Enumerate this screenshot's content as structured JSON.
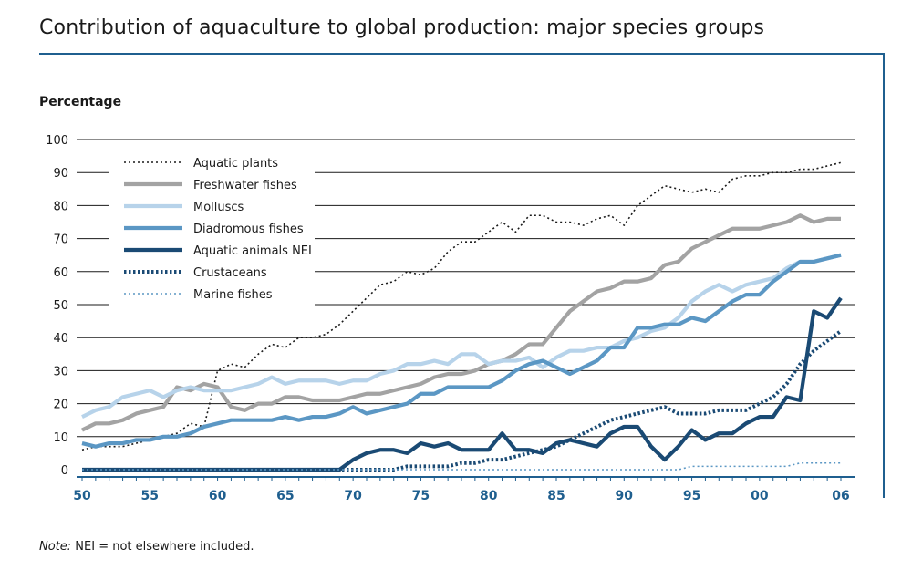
{
  "chart_data": {
    "type": "line",
    "title": "Contribution of aquaculture to global production: major species groups",
    "ylabel": "Percentage",
    "xlabel": "",
    "ylim": [
      0,
      100
    ],
    "y_ticks": [
      0,
      10,
      20,
      30,
      40,
      50,
      60,
      70,
      80,
      90,
      100
    ],
    "xlim": [
      1950,
      2006
    ],
    "x_ticks": [
      {
        "value": 1950,
        "label": "50"
      },
      {
        "value": 1955,
        "label": "55"
      },
      {
        "value": 1960,
        "label": "60"
      },
      {
        "value": 1965,
        "label": "65"
      },
      {
        "value": 1970,
        "label": "70"
      },
      {
        "value": 1975,
        "label": "75"
      },
      {
        "value": 1980,
        "label": "80"
      },
      {
        "value": 1985,
        "label": "85"
      },
      {
        "value": 1990,
        "label": "90"
      },
      {
        "value": 1995,
        "label": "95"
      },
      {
        "value": 2000,
        "label": "00"
      },
      {
        "value": 2006,
        "label": "06"
      }
    ],
    "grid": "horizontal",
    "legend_position": "top-left",
    "x": [
      1950,
      1951,
      1952,
      1953,
      1954,
      1955,
      1956,
      1957,
      1958,
      1959,
      1960,
      1961,
      1962,
      1963,
      1964,
      1965,
      1966,
      1967,
      1968,
      1969,
      1970,
      1971,
      1972,
      1973,
      1974,
      1975,
      1976,
      1977,
      1978,
      1979,
      1980,
      1981,
      1982,
      1983,
      1984,
      1985,
      1986,
      1987,
      1988,
      1989,
      1990,
      1991,
      1992,
      1993,
      1994,
      1995,
      1996,
      1997,
      1998,
      1999,
      2000,
      2001,
      2002,
      2003,
      2004,
      2005,
      2006
    ],
    "series": [
      {
        "name": "Aquatic plants",
        "color": "#1a1a1a",
        "style": "dotted-thin",
        "values": [
          6,
          7,
          7,
          7,
          8,
          9,
          10,
          11,
          14,
          13,
          30,
          32,
          31,
          35,
          38,
          37,
          40,
          40,
          41,
          44,
          48,
          52,
          56,
          57,
          60,
          59,
          61,
          66,
          69,
          69,
          72,
          75,
          72,
          77,
          77,
          75,
          75,
          74,
          76,
          77,
          74,
          80,
          83,
          86,
          85,
          84,
          85,
          84,
          88,
          89,
          89,
          90,
          90,
          91,
          91,
          92,
          93
        ]
      },
      {
        "name": "Freshwater fishes",
        "color": "#a3a3a3",
        "style": "solid-thick",
        "values": [
          12,
          14,
          14,
          15,
          17,
          18,
          19,
          25,
          24,
          26,
          25,
          19,
          18,
          20,
          20,
          22,
          22,
          21,
          21,
          21,
          22,
          23,
          23,
          24,
          25,
          26,
          28,
          29,
          29,
          30,
          32,
          33,
          35,
          38,
          38,
          43,
          48,
          51,
          54,
          55,
          57,
          57,
          58,
          62,
          63,
          67,
          69,
          71,
          73,
          73,
          73,
          74,
          75,
          77,
          75,
          76,
          76
        ]
      },
      {
        "name": "Molluscs",
        "color": "#b7d3ea",
        "style": "solid-thick",
        "values": [
          16,
          18,
          19,
          22,
          23,
          24,
          22,
          24,
          25,
          24,
          24,
          24,
          25,
          26,
          28,
          26,
          27,
          27,
          27,
          26,
          27,
          27,
          29,
          30,
          32,
          32,
          33,
          32,
          35,
          35,
          32,
          33,
          33,
          34,
          31,
          34,
          36,
          36,
          37,
          37,
          39,
          40,
          42,
          43,
          46,
          51,
          54,
          56,
          54,
          56,
          57,
          58,
          61,
          63,
          63,
          64,
          65
        ]
      },
      {
        "name": "Diadromous fishes",
        "color": "#5b97c4",
        "style": "solid-thick",
        "values": [
          8,
          7,
          8,
          8,
          9,
          9,
          10,
          10,
          11,
          13,
          14,
          15,
          15,
          15,
          15,
          16,
          15,
          16,
          16,
          17,
          19,
          17,
          18,
          19,
          20,
          23,
          23,
          25,
          25,
          25,
          25,
          27,
          30,
          32,
          33,
          31,
          29,
          31,
          33,
          37,
          37,
          43,
          43,
          44,
          44,
          46,
          45,
          48,
          51,
          53,
          53,
          57,
          60,
          63,
          63,
          64,
          65
        ]
      },
      {
        "name": "Aquatic animals NEI",
        "color": "#1a4a74",
        "style": "solid-thick",
        "values": [
          0,
          0,
          0,
          0,
          0,
          0,
          0,
          0,
          0,
          0,
          0,
          0,
          0,
          0,
          0,
          0,
          0,
          0,
          0,
          0,
          3,
          5,
          6,
          6,
          5,
          8,
          7,
          8,
          6,
          6,
          6,
          11,
          6,
          6,
          5,
          8,
          9,
          8,
          7,
          11,
          13,
          13,
          7,
          3,
          7,
          12,
          9,
          11,
          11,
          14,
          16,
          16,
          22,
          21,
          48,
          46,
          52
        ]
      },
      {
        "name": "Crustaceans",
        "color": "#1a4a74",
        "style": "dotted-thick",
        "values": [
          0,
          0,
          0,
          0,
          0,
          0,
          0,
          0,
          0,
          0,
          0,
          0,
          0,
          0,
          0,
          0,
          0,
          0,
          0,
          0,
          0,
          0,
          0,
          0,
          1,
          1,
          1,
          1,
          2,
          2,
          3,
          3,
          4,
          5,
          6,
          7,
          9,
          11,
          13,
          15,
          16,
          17,
          18,
          19,
          17,
          17,
          17,
          18,
          18,
          18,
          20,
          22,
          26,
          32,
          36,
          39,
          42
        ]
      },
      {
        "name": "Marine fishes",
        "color": "#5b97c4",
        "style": "dotted-thin",
        "values": [
          0,
          0,
          0,
          0,
          0,
          0,
          0,
          0,
          0,
          0,
          0,
          0,
          0,
          0,
          0,
          0,
          0,
          0,
          0,
          0,
          0,
          0,
          0,
          0,
          0,
          0,
          0,
          0,
          0,
          0,
          0,
          0,
          0,
          0,
          0,
          0,
          0,
          0,
          0,
          0,
          0,
          0,
          0,
          0,
          0,
          1,
          1,
          1,
          1,
          1,
          1,
          1,
          1,
          2,
          2,
          2,
          2
        ]
      }
    ]
  },
  "note": {
    "lead": "Note:",
    "text": " NEI = not elsewhere included."
  }
}
